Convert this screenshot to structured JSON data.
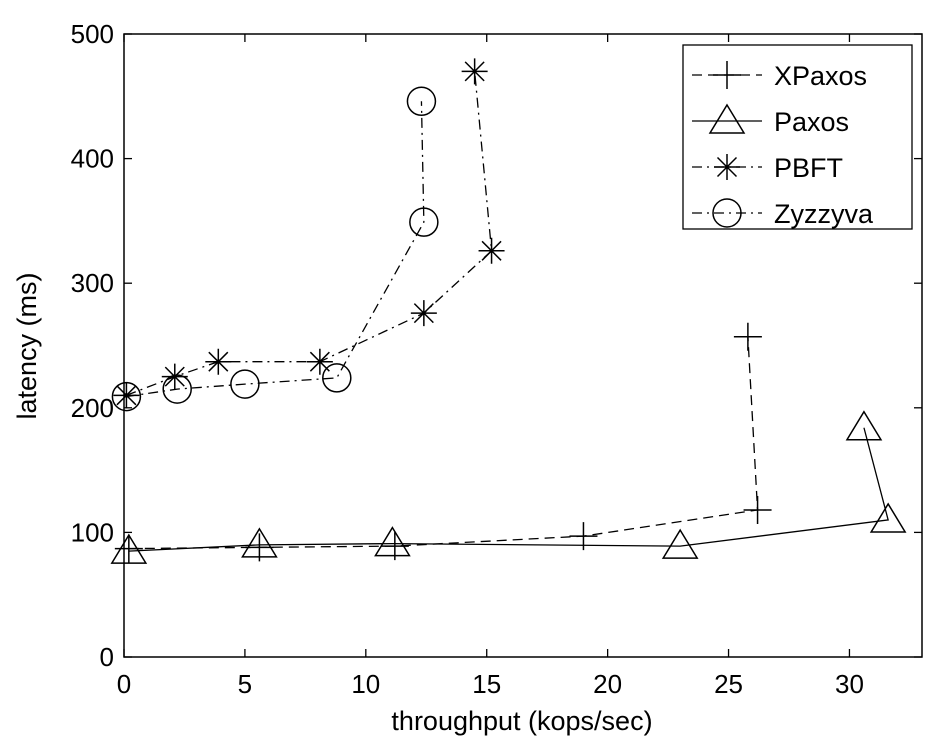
{
  "chart_data": {
    "type": "line",
    "title": "",
    "xlabel": "throughput (kops/sec)",
    "ylabel": "latency (ms)",
    "xlim": [
      0,
      33
    ],
    "ylim": [
      0,
      500
    ],
    "xticks": [
      "0",
      "5",
      "10",
      "15",
      "20",
      "25",
      "30"
    ],
    "yticks": [
      "0",
      "100",
      "200",
      "300",
      "400",
      "500"
    ],
    "grid": false,
    "legend_position": "top-right",
    "series": [
      {
        "name": "XPaxos",
        "marker": "plus",
        "line_style": "dashed",
        "color": "#000000",
        "points": [
          [
            0.2,
            87
          ],
          [
            5.6,
            88
          ],
          [
            11.2,
            89
          ],
          [
            19.0,
            97
          ],
          [
            26.2,
            118
          ],
          [
            25.8,
            257
          ]
        ]
      },
      {
        "name": "Paxos",
        "marker": "triangle",
        "line_style": "solid",
        "color": "#000000",
        "points": [
          [
            0.2,
            85
          ],
          [
            5.6,
            90
          ],
          [
            11.1,
            91
          ],
          [
            23.0,
            89
          ],
          [
            31.6,
            110
          ],
          [
            30.6,
            184
          ]
        ]
      },
      {
        "name": "PBFT",
        "marker": "asterisk",
        "line_style": "dashdot",
        "color": "#000000",
        "points": [
          [
            0.1,
            210
          ],
          [
            2.1,
            225
          ],
          [
            3.9,
            237
          ],
          [
            8.1,
            237
          ],
          [
            12.4,
            276
          ],
          [
            15.2,
            326
          ],
          [
            14.5,
            470
          ]
        ]
      },
      {
        "name": "Zyzzyva",
        "marker": "circle",
        "line_style": "dashdot",
        "color": "#000000",
        "points": [
          [
            0.1,
            209
          ],
          [
            2.2,
            215
          ],
          [
            5.0,
            219
          ],
          [
            8.8,
            224
          ],
          [
            12.4,
            349
          ],
          [
            12.3,
            446
          ]
        ]
      }
    ]
  }
}
